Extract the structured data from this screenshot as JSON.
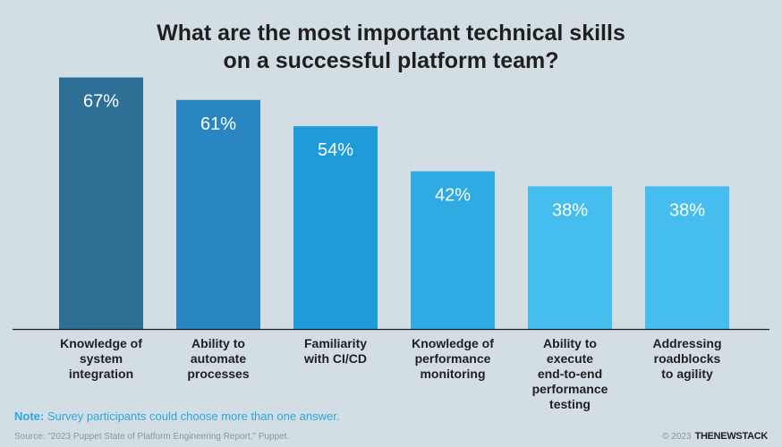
{
  "title_lines": [
    "What are the most important technical skills",
    "on a successful platform team?"
  ],
  "chart_data": {
    "type": "bar",
    "title": "What are the most important technical skills on a successful platform team?",
    "categories": [
      "Knowledge of\nsystem\nintegration",
      "Ability to\nautomate\nprocesses",
      "Familiarity\nwith CI/CD",
      "Knowledge of\nperformance\nmonitoring",
      "Ability to\nexecute\nend-to-end\nperformance testing",
      "Addressing\nroadblocks\nto agility"
    ],
    "values": [
      67,
      61,
      54,
      42,
      38,
      38
    ],
    "value_labels": [
      "67%",
      "61%",
      "54%",
      "42%",
      "38%",
      "38%"
    ],
    "unit": "%",
    "bar_colors": [
      "#2e6f96",
      "#2a86c2",
      "#1f9bd9",
      "#2eabe3",
      "#45bdee",
      "#45bdee"
    ],
    "grid": false,
    "legend": "none"
  },
  "note": {
    "prefix": "Note:",
    "text": " Survey participants could choose more than one answer."
  },
  "source": "Source: \"2023 Puppet State of Platform Engineering Report,\" Puppet.",
  "copyright": "© 2023",
  "brand": "THENEWSTACK"
}
